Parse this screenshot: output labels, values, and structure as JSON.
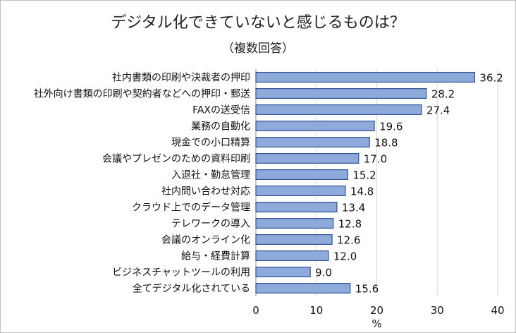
{
  "chart_data": {
    "type": "bar",
    "orientation": "horizontal",
    "title": "デジタル化できていないと感じるものは？",
    "subtitle": "（複数回答）",
    "categories": [
      "社内書類の印刷や決裁者の押印",
      "社外向け書類の印刷や契約者などへの押印・郵送",
      "FAXの送受信",
      "業務の自動化",
      "現金での小口精算",
      "会議やプレゼンのための資料印刷",
      "入退社・勤怠管理",
      "社内問い合わせ対応",
      "クラウド上でのデータ管理",
      "テレワークの導入",
      "会議のオンライン化",
      "給与・経費計算",
      "ビジネスチャットツールの利用",
      "全てデジタル化されている"
    ],
    "values": [
      36.2,
      28.2,
      27.4,
      19.6,
      18.8,
      17.0,
      15.2,
      14.8,
      13.4,
      12.8,
      12.6,
      12.0,
      9.0,
      15.6
    ],
    "value_labels": [
      "36.2",
      "28.2",
      "27.4",
      "19.6",
      "18.8",
      "17.0",
      "15.2",
      "14.8",
      "13.4",
      "12.8",
      "12.6",
      "12.0",
      "9.0",
      "15.6"
    ],
    "xlim": [
      0,
      40
    ],
    "xticks": [
      0,
      10,
      20,
      30,
      40
    ],
    "xticklabels": [
      "0",
      "10",
      "20",
      "30",
      "40"
    ],
    "xlabel": "%",
    "grid": "vertical",
    "legend": "none",
    "bar_color": "#8eaadb",
    "bar_edge_color": "#2f5597",
    "grid_color": "#d9d9d9"
  }
}
